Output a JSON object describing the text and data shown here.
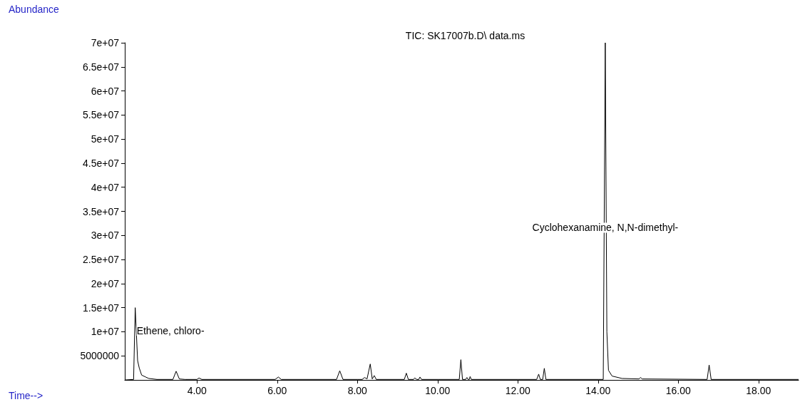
{
  "chart_data": {
    "type": "line",
    "title": "TIC: SK17007b.D\\ data.ms",
    "xlabel": "Time-->",
    "ylabel": "Abundance",
    "x": [
      2.22,
      2.42,
      2.46,
      2.52,
      2.56,
      2.62,
      2.72,
      2.8,
      3.0,
      3.4,
      3.48,
      3.56,
      3.7,
      4.0,
      4.05,
      4.12,
      5.95,
      6.03,
      6.1,
      7.48,
      7.56,
      7.64,
      8.12,
      8.18,
      8.24,
      8.32,
      8.37,
      8.42,
      8.47,
      9.17,
      9.22,
      9.27,
      9.4,
      9.43,
      9.48,
      9.53,
      9.56,
      9.6,
      10.54,
      10.58,
      10.62,
      10.7,
      10.73,
      10.76,
      10.79,
      10.81,
      10.84,
      12.47,
      12.52,
      12.56,
      12.62,
      12.66,
      12.7,
      14.13,
      14.18,
      14.22,
      14.26,
      14.35,
      14.6,
      15.02,
      15.06,
      15.1,
      16.72,
      16.77,
      16.82,
      19.0
    ],
    "series": [
      {
        "color": "#000000",
        "values": [
          0,
          100000,
          15000000,
          4000000,
          2500000,
          1000000,
          600000,
          300000,
          100000,
          100000,
          1800000,
          200000,
          100000,
          100000,
          400000,
          100000,
          100000,
          600000,
          100000,
          100000,
          1900000,
          100000,
          100000,
          500000,
          200000,
          3300000,
          200000,
          900000,
          100000,
          100000,
          1400000,
          100000,
          100000,
          400000,
          100000,
          100000,
          600000,
          100000,
          100000,
          4200000,
          100000,
          100000,
          500000,
          100000,
          100000,
          700000,
          100000,
          100000,
          1200000,
          100000,
          100000,
          2400000,
          100000,
          100000,
          70000000,
          10000000,
          2000000,
          800000,
          300000,
          200000,
          500000,
          200000,
          100000,
          3100000,
          100000,
          100000
        ]
      }
    ],
    "xlim": [
      2.2,
      19.0
    ],
    "xticks": [
      {
        "value": 4,
        "label": "4.00"
      },
      {
        "value": 6,
        "label": "6.00"
      },
      {
        "value": 8,
        "label": "8.00"
      },
      {
        "value": 10,
        "label": "10.00"
      },
      {
        "value": 12,
        "label": "12.00"
      },
      {
        "value": 14,
        "label": "14.00"
      },
      {
        "value": 16,
        "label": "16.00"
      },
      {
        "value": 18,
        "label": "18.00"
      }
    ],
    "ylim": [
      0,
      70000000
    ],
    "yticks": [
      5000000,
      {
        "value": 10000000,
        "label": "1e+07"
      },
      {
        "value": 15000000,
        "label": "1.5e+07"
      },
      {
        "value": 20000000,
        "label": "2e+07"
      },
      {
        "value": 25000000,
        "label": "2.5e+07"
      },
      {
        "value": 30000000,
        "label": "3e+07"
      },
      {
        "value": 35000000,
        "label": "3.5e+07"
      },
      {
        "value": 40000000,
        "label": "4e+07"
      },
      {
        "value": 45000000,
        "label": "4.5e+07"
      },
      {
        "value": 50000000,
        "label": "5e+07"
      },
      {
        "value": 55000000,
        "label": "5.5e+07"
      },
      {
        "value": 60000000,
        "label": "6e+07"
      },
      {
        "value": 65000000,
        "label": "6.5e+07"
      },
      {
        "value": 70000000,
        "label": "7e+07"
      }
    ],
    "annotations": [
      {
        "text": "Ethene, chloro-",
        "x": 2.46,
        "y": 10200000
      },
      {
        "text": "Cyclohexanamine, N,N-dimethyl-",
        "x": 14.18,
        "y": 31600000
      }
    ],
    "grid": false,
    "marker": "none",
    "line_style": "solid"
  }
}
